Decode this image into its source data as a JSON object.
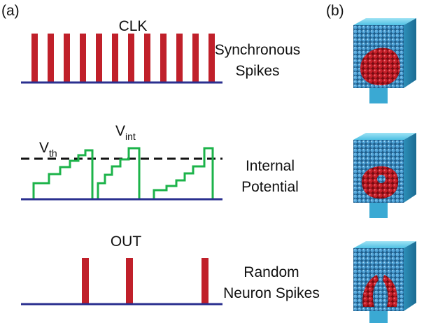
{
  "panel_a": {
    "label": "(a)",
    "clk": {
      "label": "CLK",
      "caption": [
        "Synchronous",
        "Spikes"
      ]
    },
    "potential": {
      "threshold": {
        "symbol": "V",
        "subscript": "th"
      },
      "internal": {
        "symbol": "V",
        "subscript": "int"
      },
      "caption": [
        "Internal",
        "Potential"
      ]
    },
    "out": {
      "label": "OUT",
      "caption": [
        "Random",
        "Neuron Spikes"
      ]
    }
  },
  "panel_b": {
    "label": "(b)"
  }
}
